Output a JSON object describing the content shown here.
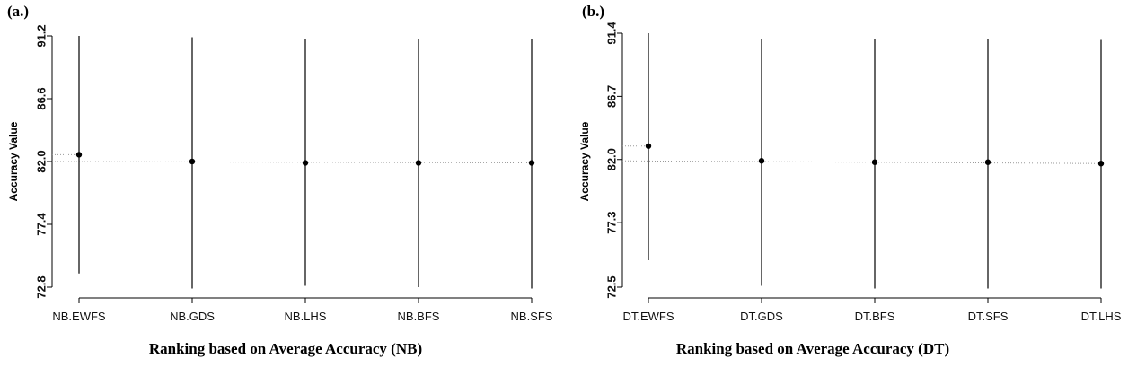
{
  "chart_data": [
    {
      "type": "scatter",
      "panel_label": "(a.)",
      "title": "",
      "xlabel": "Ranking based on Average Accuracy (NB)",
      "ylabel": "Accuracy Value",
      "categories": [
        "NB.EWFS",
        "NB.GDS",
        "NB.LHS",
        "NB.BFS",
        "NB.SFS"
      ],
      "y_ticks": [
        "72.8",
        "77.4",
        "82.0",
        "86.6",
        "91.2"
      ],
      "ylim": [
        72.8,
        91.2
      ],
      "points": [
        {
          "category": "NB.EWFS",
          "mean": 82.5,
          "low": 73.8,
          "high": 91.2
        },
        {
          "category": "NB.GDS",
          "mean": 82.0,
          "low": 72.7,
          "high": 91.1
        },
        {
          "category": "NB.LHS",
          "mean": 81.9,
          "low": 72.9,
          "high": 91.0
        },
        {
          "category": "NB.BFS",
          "mean": 81.9,
          "low": 72.8,
          "high": 91.0
        },
        {
          "category": "NB.SFS",
          "mean": 81.9,
          "low": 72.7,
          "high": 91.0
        }
      ],
      "grid": false
    },
    {
      "type": "scatter",
      "panel_label": "(b.)",
      "title": "",
      "xlabel": "Ranking based on Average Accuracy (DT)",
      "ylabel": "Accuracy Value",
      "categories": [
        "DT.EWFS",
        "DT.GDS",
        "DT.BFS",
        "DT.SFS",
        "DT.LHS"
      ],
      "y_ticks": [
        "72.5",
        "77.3",
        "82.0",
        "86.7",
        "91.4"
      ],
      "ylim": [
        72.5,
        91.4
      ],
      "points": [
        {
          "category": "DT.EWFS",
          "mean": 83.0,
          "low": 74.5,
          "high": 91.4
        },
        {
          "category": "DT.GDS",
          "mean": 81.9,
          "low": 72.6,
          "high": 91.0
        },
        {
          "category": "DT.BFS",
          "mean": 81.8,
          "low": 72.4,
          "high": 91.0
        },
        {
          "category": "DT.SFS",
          "mean": 81.8,
          "low": 72.4,
          "high": 91.0
        },
        {
          "category": "DT.LHS",
          "mean": 81.7,
          "low": 72.4,
          "high": 90.9
        }
      ],
      "grid": false
    }
  ]
}
